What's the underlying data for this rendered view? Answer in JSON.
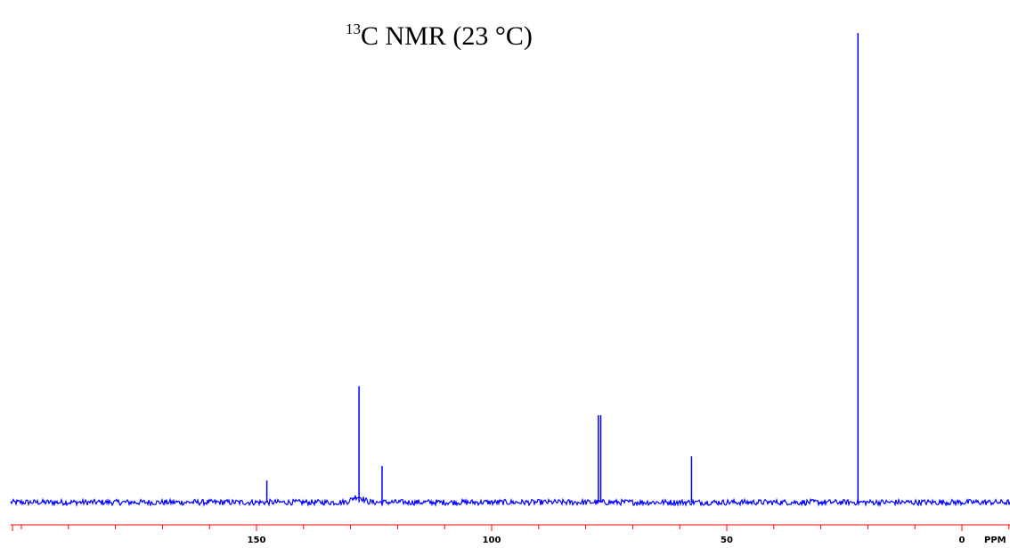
{
  "chart_data": {
    "type": "line",
    "title": {
      "superscript": "13",
      "main": "C NMR (23 °C)"
    },
    "xlabel": "",
    "ylabel": "",
    "x_unit_label": "PPM",
    "x_reversed": true,
    "xlim": [
      210,
      -5
    ],
    "ylim": [
      0,
      1
    ],
    "grid": false,
    "legend": "none",
    "major_ticks": [
      150,
      100,
      50,
      0
    ],
    "minor_tick_step": 10,
    "tick_labels": [
      "150",
      "100",
      "50",
      "0"
    ],
    "series": [
      {
        "baseline": 0.03,
        "peaks": [
          {
            "x": 147.8,
            "y": 0.075
          },
          {
            "x": 128.2,
            "y": 0.27
          },
          {
            "x": 123.3,
            "y": 0.105
          },
          {
            "x": 77.3,
            "y": 0.21
          },
          {
            "x": 76.8,
            "y": 0.21
          },
          {
            "x": 57.5,
            "y": 0.125
          },
          {
            "x": 22.1,
            "y": 1.0
          }
        ]
      }
    ],
    "colors": {
      "spectrum": "#0000ff",
      "axis": "#ff0000",
      "text": "#000000"
    }
  }
}
